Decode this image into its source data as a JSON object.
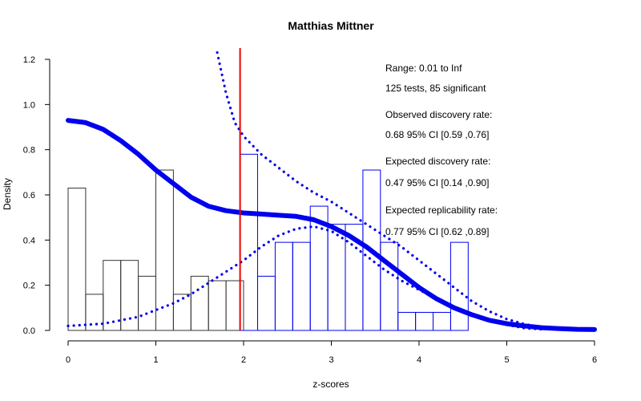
{
  "chart_data": {
    "type": "histogram",
    "title": "Matthias Mittner",
    "xlabel": "z-scores",
    "ylabel": "Density",
    "xlim": [
      0,
      6
    ],
    "ylim": [
      0,
      1.2
    ],
    "x_ticks": [
      "0",
      "1",
      "2",
      "3",
      "4",
      "5",
      "6"
    ],
    "y_ticks": [
      "0.0",
      "0.2",
      "0.4",
      "0.6",
      "0.8",
      "1.0",
      "1.2"
    ],
    "critical_z": 1.96,
    "bin_width": 0.2,
    "histogram_nonsignificant": {
      "color": "#333333",
      "bins": [
        {
          "x0": 0.0,
          "density": 0.63
        },
        {
          "x0": 0.2,
          "density": 0.16
        },
        {
          "x0": 0.4,
          "density": 0.31
        },
        {
          "x0": 0.6,
          "density": 0.31
        },
        {
          "x0": 0.8,
          "density": 0.24
        },
        {
          "x0": 1.0,
          "density": 0.71
        },
        {
          "x0": 1.2,
          "density": 0.16
        },
        {
          "x0": 1.4,
          "density": 0.24
        },
        {
          "x0": 1.6,
          "density": 0.22
        },
        {
          "x0": 1.8,
          "density": 0.22
        }
      ]
    },
    "histogram_significant": {
      "color": "#0000ee",
      "bins": [
        {
          "x0": 1.96,
          "density": 0.78
        },
        {
          "x0": 2.16,
          "density": 0.24
        },
        {
          "x0": 2.36,
          "density": 0.39
        },
        {
          "x0": 2.56,
          "density": 0.39
        },
        {
          "x0": 2.76,
          "density": 0.55
        },
        {
          "x0": 2.96,
          "density": 0.47
        },
        {
          "x0": 3.16,
          "density": 0.47
        },
        {
          "x0": 3.36,
          "density": 0.71
        },
        {
          "x0": 3.56,
          "density": 0.39
        },
        {
          "x0": 3.76,
          "density": 0.08
        },
        {
          "x0": 3.96,
          "density": 0.08
        },
        {
          "x0": 4.16,
          "density": 0.08
        },
        {
          "x0": 4.36,
          "density": 0.39
        }
      ]
    },
    "series": [
      {
        "style": "solid-thick",
        "color": "#0000ee",
        "x": [
          0,
          0.2,
          0.4,
          0.6,
          0.8,
          1.0,
          1.2,
          1.4,
          1.6,
          1.8,
          2.0,
          2.2,
          2.4,
          2.6,
          2.8,
          3.0,
          3.2,
          3.4,
          3.6,
          3.8,
          4.0,
          4.2,
          4.4,
          4.6,
          4.8,
          5.0,
          5.2,
          5.4,
          5.6,
          5.8,
          6.0
        ],
        "y": [
          0.93,
          0.92,
          0.89,
          0.84,
          0.78,
          0.71,
          0.65,
          0.59,
          0.55,
          0.53,
          0.52,
          0.515,
          0.51,
          0.505,
          0.49,
          0.46,
          0.42,
          0.37,
          0.31,
          0.25,
          0.19,
          0.14,
          0.1,
          0.07,
          0.045,
          0.03,
          0.02,
          0.012,
          0.008,
          0.005,
          0.004
        ]
      },
      {
        "style": "dotted",
        "color": "#0000ee",
        "x": [
          1.7,
          1.8,
          1.9,
          2.0,
          2.2,
          2.4,
          2.6,
          2.8,
          3.0,
          3.2,
          3.4,
          3.6,
          3.8,
          4.0,
          4.2,
          4.4,
          4.6,
          4.8,
          5.0,
          5.2,
          5.4,
          5.6,
          5.8,
          6.0
        ],
        "y": [
          1.23,
          1.05,
          0.92,
          0.86,
          0.78,
          0.72,
          0.66,
          0.61,
          0.57,
          0.52,
          0.47,
          0.42,
          0.37,
          0.31,
          0.25,
          0.19,
          0.13,
          0.085,
          0.05,
          0.028,
          0.015,
          0.008,
          0.005,
          0.003
        ]
      },
      {
        "style": "dotted",
        "color": "#0000ee",
        "x": [
          0,
          0.4,
          0.8,
          1.0,
          1.2,
          1.4,
          1.6,
          1.8,
          2.0,
          2.2,
          2.4,
          2.6,
          2.8,
          3.0,
          3.2,
          3.4,
          3.6,
          3.8,
          4.0,
          4.2,
          4.4,
          4.6,
          4.8,
          5.0,
          5.2,
          5.4
        ],
        "y": [
          0.02,
          0.03,
          0.06,
          0.09,
          0.12,
          0.16,
          0.21,
          0.26,
          0.31,
          0.37,
          0.42,
          0.45,
          0.46,
          0.44,
          0.39,
          0.33,
          0.27,
          0.22,
          0.18,
          0.14,
          0.1,
          0.07,
          0.045,
          0.025,
          0.01,
          0.005
        ]
      }
    ],
    "vline": {
      "x": 1.96,
      "color": "#ee0000"
    },
    "annotations": [
      "Range: 0.01 to Inf",
      "125 tests, 85 significant",
      "Observed discovery rate:",
      "0.68  95% CI [0.59 ,0.76]",
      "Expected discovery rate:",
      "0.47  95% CI [0.14 ,0.90]",
      "Expected replicability rate:",
      "0.77  95% CI [0.62 ,0.89]"
    ]
  }
}
